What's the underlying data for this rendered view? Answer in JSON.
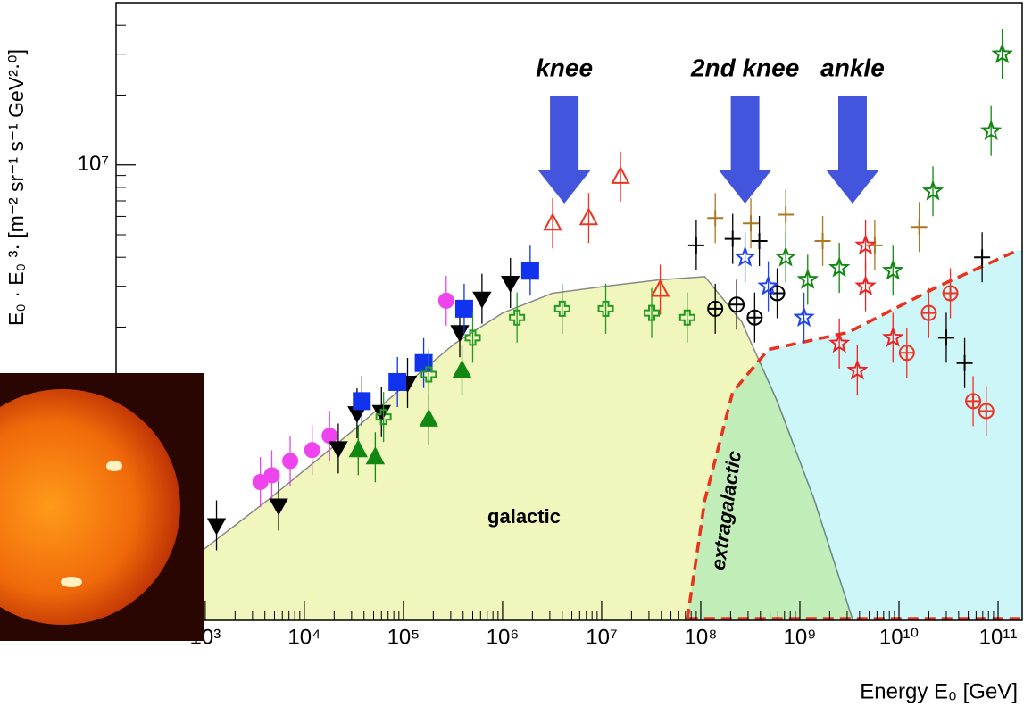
{
  "chart_data": {
    "type": "scatter",
    "log_x": true,
    "log_y": true,
    "xlabel": "Energy E₀ [GeV]",
    "ylabel": "E₀ · E₀ ³· [m⁻² sr⁻¹ s⁻¹ GeV²·⁰]",
    "xlim": [
      126,
      175000000000.0
    ],
    "ylim": [
      109000.0,
      50000000.0
    ],
    "xticks": [
      {
        "value": 1000.0,
        "label": "10³"
      },
      {
        "value": 10000.0,
        "label": "10⁴"
      },
      {
        "value": 100000.0,
        "label": "10⁵"
      },
      {
        "value": 1000000.0,
        "label": "10⁶"
      },
      {
        "value": 10000000.0,
        "label": "10⁷"
      },
      {
        "value": 100000000.0,
        "label": "10⁸"
      },
      {
        "value": 1000000000.0,
        "label": "10⁹"
      },
      {
        "value": 10000000000.0,
        "label": "10¹⁰"
      },
      {
        "value": 100000000000.0,
        "label": "10¹¹"
      }
    ],
    "xminor_ticks": [
      200,
      300,
      400,
      500,
      600,
      700,
      800,
      900,
      2000.0,
      3000.0,
      4000.0,
      5000.0,
      6000.0,
      7000.0,
      8000.0,
      9000.0,
      20000.0,
      30000.0,
      40000.0,
      50000.0,
      60000.0,
      70000.0,
      80000.0,
      90000.0,
      200000.0,
      300000.0,
      400000.0,
      500000.0,
      600000.0,
      700000.0,
      800000.0,
      900000.0,
      2000000.0,
      3000000.0,
      4000000.0,
      5000000.0,
      6000000.0,
      7000000.0,
      8000000.0,
      9000000.0,
      20000000.0,
      30000000.0,
      40000000.0,
      50000000.0,
      60000000.0,
      70000000.0,
      80000000.0,
      90000000.0,
      200000000.0,
      300000000.0,
      400000000.0,
      500000000.0,
      600000000.0,
      700000000.0,
      800000000.0,
      900000000.0,
      2000000000.0,
      3000000000.0,
      4000000000.0,
      5000000000.0,
      6000000000.0,
      7000000000.0,
      8000000000.0,
      9000000000.0,
      20000000000.0,
      30000000000.0,
      40000000000.0,
      50000000000.0,
      60000000000.0,
      70000000000.0,
      80000000000.0,
      90000000000.0
    ],
    "yticks": [
      {
        "value": 10000000.0,
        "label": "10⁷"
      }
    ],
    "yminor_ticks": [
      200000.0,
      300000.0,
      400000.0,
      500000.0,
      600000.0,
      700000.0,
      800000.0,
      900000.0,
      1000000.0,
      2000000.0,
      3000000.0,
      4000000.0,
      5000000.0,
      6000000.0,
      7000000.0,
      8000000.0,
      9000000.0,
      20000000.0,
      30000000.0,
      40000000.0
    ],
    "areas": [
      {
        "text": "galactic",
        "fill": "#f1f6bd",
        "line": "#888888",
        "dash": false,
        "x": [
          960,
          4300,
          34000.0,
          110000.0,
          330000.0,
          1000000.0,
          3200000.0,
          11000000.0,
          39000000.0,
          110000000.0,
          260000000.0,
          590000000.0,
          1400000000.0,
          3400000000.0
        ],
        "values": [
          220000.0,
          360000.0,
          740000.0,
          1150000.0,
          1700000.0,
          2300000.0,
          2800000.0,
          3000000.0,
          3200000.0,
          3300000.0,
          2100000.0,
          960000.0,
          360000.0,
          110000.0
        ]
      },
      {
        "text": "extragalactic",
        "fill": "#cdf6f8",
        "line": "#e8321e",
        "dash": true,
        "x": [
          73000000.0,
          110000000.0,
          210000000.0,
          480000000.0,
          3100000000.0,
          25000000000.0,
          160000000000.0
        ],
        "values": [
          110000.0,
          360000.0,
          1050000.0,
          1600000.0,
          1900000.0,
          3000000.0,
          4300000.0
        ]
      }
    ],
    "annotations": [
      {
        "text": "knee",
        "x": 4200000.0
      },
      {
        "text": "2nd knee",
        "x": 280000000.0
      },
      {
        "text": "ankle",
        "x": 3400000000.0
      }
    ],
    "series": [
      {
        "color": "#ee44ee",
        "marker": "circle",
        "filled": true,
        "x": [
          3600,
          4700,
          7200,
          12000.0,
          18000.0,
          270000.0
        ],
        "values": [
          430000.0,
          460000.0,
          530000.0,
          590000.0,
          680000.0,
          2600000.0
        ]
      },
      {
        "color": "#000000",
        "marker": "triangle-down",
        "filled": true,
        "x": [
          1300,
          5500,
          22000.0,
          34000.0,
          60000.0,
          110000.0,
          370000.0,
          620000.0,
          1200000.0
        ],
        "values": [
          280000.0,
          340000.0,
          600000.0,
          850000.0,
          860000.0,
          1150000.0,
          1900000.0,
          2650000.0,
          3100000.0
        ]
      },
      {
        "color": "#1133ee",
        "marker": "square",
        "filled": true,
        "x": [
          38000.0,
          87000.0,
          160000.0,
          410000.0,
          1900000.0
        ],
        "values": [
          960000.0,
          1160000.0,
          1400000.0,
          2400000.0,
          3500000.0
        ]
      },
      {
        "color": "#118811",
        "marker": "triangle-up",
        "filled": true,
        "x": [
          35000.0,
          52000.0,
          180000.0,
          390000.0
        ],
        "values": [
          590000.0,
          550000.0,
          800000.0,
          1300000.0
        ]
      },
      {
        "color": "#229922",
        "marker": "plus",
        "filled": false,
        "x": [
          63000.0,
          180000.0,
          500000.0,
          1400000.0,
          4000000.0,
          11000000.0,
          32000000.0,
          73000000.0
        ],
        "values": [
          820000.0,
          1250000.0,
          1800000.0,
          2200000.0,
          2400000.0,
          2400000.0,
          2300000.0,
          2200000.0
        ]
      },
      {
        "color": "#ee3322",
        "marker": "triangle-up",
        "filled": false,
        "x": [
          15500000.0,
          3200000.0,
          7400000.0,
          39000000.0
        ],
        "values": [
          8900000.0,
          5600000.0,
          5900000.0,
          2900000.0
        ]
      },
      {
        "color": "#000000",
        "marker": "cross",
        "filled": false,
        "x": [
          90000000.0,
          210000000.0,
          390000000.0,
          30000000000.0,
          46000000000.0,
          69000000000.0
        ],
        "values": [
          4500000.0,
          4800000.0,
          4700000.0,
          1800000.0,
          1400000.0,
          4000000.0
        ]
      },
      {
        "color": "#000000",
        "marker": "circle-plus",
        "filled": false,
        "x": [
          140000000.0,
          230000000.0,
          350000000.0,
          590000000.0
        ],
        "values": [
          2400000.0,
          2500000.0,
          2200000.0,
          2800000.0
        ]
      },
      {
        "color": "#aa7722",
        "marker": "cross",
        "filled": false,
        "x": [
          140000000.0,
          320000000.0,
          720000000.0,
          1700000000.0,
          5700000000.0,
          16000000000.0
        ],
        "values": [
          5900000.0,
          5600000.0,
          6100000.0,
          4700000.0,
          4500000.0,
          5400000.0
        ]
      },
      {
        "color": "#118811",
        "marker": "star",
        "filled": false,
        "x": [
          110000000000.0,
          85000000000.0,
          22000000000.0,
          720000000.0,
          1200000000.0,
          2500000000.0,
          8700000000.0
        ],
        "values": [
          30000000.0,
          14000000.0,
          7700000.0,
          4000000.0,
          3200000.0,
          3600000.0,
          3500000.0
        ]
      },
      {
        "color": "#2244ee",
        "marker": "star",
        "filled": false,
        "x": [
          280000000.0,
          480000000.0,
          1100000000.0
        ],
        "values": [
          4000000.0,
          3000000.0,
          2200000.0
        ]
      },
      {
        "color": "#ee2222",
        "marker": "star",
        "filled": false,
        "x": [
          4600000000.0,
          4600000000.0,
          2500000000.0,
          3800000000.0,
          8700000000.0
        ],
        "values": [
          4500000.0,
          3000000.0,
          1700000.0,
          1300000.0,
          1800000.0
        ]
      },
      {
        "color": "#ee3322",
        "marker": "circle-plus",
        "filled": false,
        "x": [
          12000000000.0,
          20000000000.0,
          33000000000.0,
          56000000000.0,
          76000000000.0
        ],
        "values": [
          1550000.0,
          2300000.0,
          2800000.0,
          960000.0,
          870000.0
        ]
      }
    ]
  }
}
